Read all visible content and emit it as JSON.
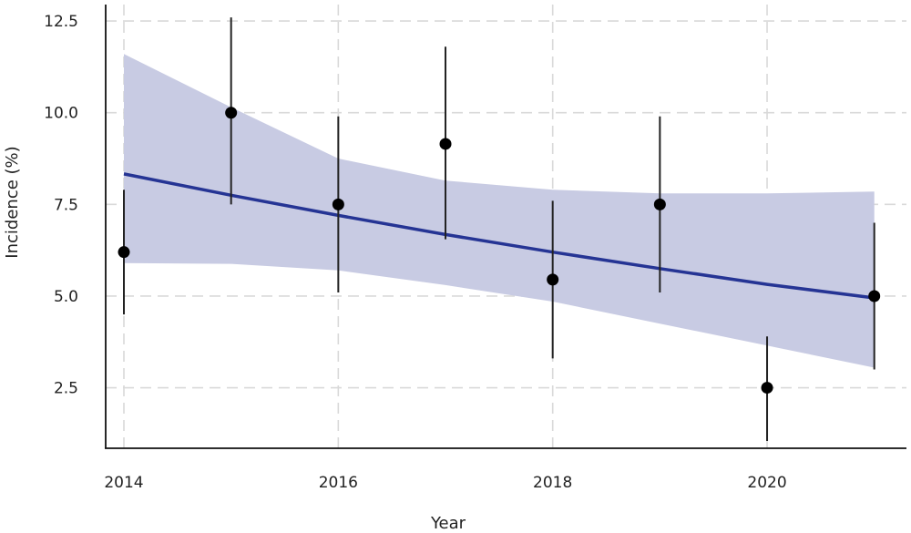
{
  "chart_data": {
    "type": "scatter",
    "xlabel": "Year",
    "ylabel": "Incidence (%)",
    "xlim": [
      2013.83,
      2021.3
    ],
    "ylim": [
      0.85,
      12.95
    ],
    "x_ticks": [
      {
        "value": 2014,
        "label": "2014"
      },
      {
        "value": 2016,
        "label": "2016"
      },
      {
        "value": 2018,
        "label": "2018"
      },
      {
        "value": 2020,
        "label": "2020"
      }
    ],
    "y_ticks": [
      {
        "value": 2.5,
        "label": "2.5"
      },
      {
        "value": 5.0,
        "label": "5.0"
      },
      {
        "value": 7.5,
        "label": "7.5"
      },
      {
        "value": 10.0,
        "label": "10.0"
      },
      {
        "value": 12.5,
        "label": "12.5"
      }
    ],
    "grid": true,
    "points": [
      {
        "x": 2014,
        "y": 6.2,
        "lower": 4.5,
        "upper": 7.9
      },
      {
        "x": 2015,
        "y": 10.0,
        "lower": 7.5,
        "upper": 12.6
      },
      {
        "x": 2016,
        "y": 7.5,
        "lower": 5.1,
        "upper": 9.9
      },
      {
        "x": 2017,
        "y": 9.15,
        "lower": 6.55,
        "upper": 11.8
      },
      {
        "x": 2018,
        "y": 5.45,
        "lower": 3.3,
        "upper": 7.6
      },
      {
        "x": 2019,
        "y": 7.5,
        "lower": 5.1,
        "upper": 9.9
      },
      {
        "x": 2020,
        "y": 2.5,
        "lower": 1.05,
        "upper": 3.9
      },
      {
        "x": 2021,
        "y": 5.0,
        "lower": 3.0,
        "upper": 7.0
      }
    ],
    "trend": {
      "x": [
        2014,
        2015,
        2016,
        2017,
        2018,
        2019,
        2020,
        2021
      ],
      "y": [
        8.33,
        7.75,
        7.2,
        6.68,
        6.2,
        5.75,
        5.32,
        4.95
      ],
      "lower": [
        5.9,
        5.88,
        5.7,
        5.3,
        4.85,
        4.25,
        3.65,
        3.05
      ],
      "upper": [
        11.6,
        10.15,
        8.75,
        8.15,
        7.9,
        7.8,
        7.8,
        7.85
      ]
    },
    "colors": {
      "trend_line": "#253494",
      "band_fill": "#c8cbe3",
      "points": "#000000",
      "error_bars": "#222222"
    }
  }
}
